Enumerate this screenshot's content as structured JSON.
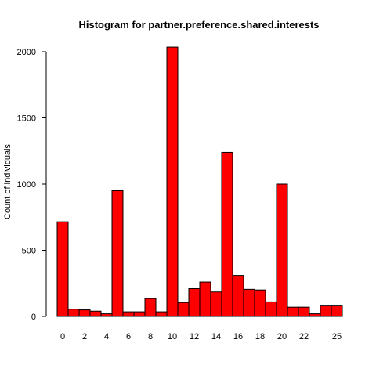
{
  "chart_data": {
    "type": "bar",
    "title": "Histogram for partner.preference.shared.interests",
    "xlabel": "",
    "ylabel": "Count of individuals",
    "bar_color": "#ff0000",
    "border_color": "#000000",
    "ylim": [
      0,
      2000
    ],
    "yticks": [
      0,
      500,
      1000,
      1500,
      2000
    ],
    "bin_width": 1,
    "x_range": [
      0,
      26
    ],
    "bins": [
      {
        "start": 0,
        "value": 715
      },
      {
        "start": 1,
        "value": 55
      },
      {
        "start": 2,
        "value": 50
      },
      {
        "start": 3,
        "value": 40
      },
      {
        "start": 4,
        "value": 20
      },
      {
        "start": 5,
        "value": 950
      },
      {
        "start": 6,
        "value": 35
      },
      {
        "start": 7,
        "value": 35
      },
      {
        "start": 8,
        "value": 135
      },
      {
        "start": 9,
        "value": 35
      },
      {
        "start": 10,
        "value": 2035
      },
      {
        "start": 11,
        "value": 105
      },
      {
        "start": 12,
        "value": 210
      },
      {
        "start": 13,
        "value": 260
      },
      {
        "start": 14,
        "value": 185
      },
      {
        "start": 15,
        "value": 1240
      },
      {
        "start": 16,
        "value": 310
      },
      {
        "start": 17,
        "value": 205
      },
      {
        "start": 18,
        "value": 200
      },
      {
        "start": 19,
        "value": 110
      },
      {
        "start": 20,
        "value": 1000
      },
      {
        "start": 21,
        "value": 70
      },
      {
        "start": 22,
        "value": 70
      },
      {
        "start": 23,
        "value": 20
      },
      {
        "start": 24,
        "value": 85
      },
      {
        "start": 25,
        "value": 85
      }
    ],
    "xtick_labels": [
      {
        "value": 0,
        "label": "0"
      },
      {
        "value": 2,
        "label": "2"
      },
      {
        "value": 4,
        "label": "4"
      },
      {
        "value": 6,
        "label": "6"
      },
      {
        "value": 8,
        "label": "8"
      },
      {
        "value": 10,
        "label": "10"
      },
      {
        "value": 12,
        "label": "12"
      },
      {
        "value": 14,
        "label": "14"
      },
      {
        "value": 16,
        "label": "16"
      },
      {
        "value": 18,
        "label": "18"
      },
      {
        "value": 20,
        "label": "20"
      },
      {
        "value": 22,
        "label": "22"
      },
      {
        "value": 25,
        "label": "25"
      }
    ]
  }
}
